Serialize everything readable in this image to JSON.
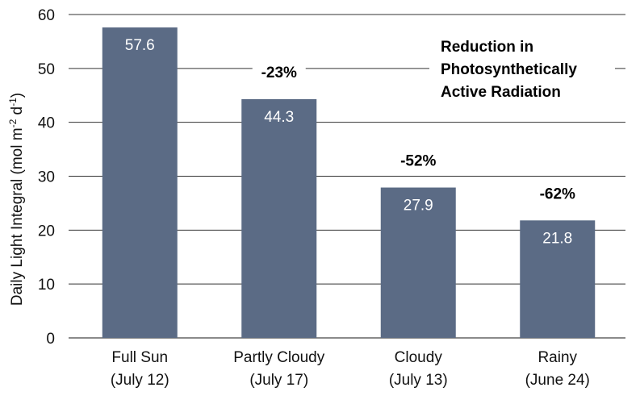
{
  "chart_data": {
    "type": "bar",
    "categories": [
      [
        "Full Sun",
        "(July 12)"
      ],
      [
        "Partly Cloudy",
        "(July 17)"
      ],
      [
        "Cloudy",
        "(July 13)"
      ],
      [
        "Rainy",
        "(June 24)"
      ]
    ],
    "values": [
      57.6,
      44.3,
      27.9,
      21.8
    ],
    "value_labels": [
      "57.6",
      "44.3",
      "27.9",
      "21.8"
    ],
    "reductions": [
      "",
      "-23%",
      "-52%",
      "-62%"
    ],
    "ylabel": "Daily Light Integral (mol m",
    "ylabel_sup1": "-2",
    "ylabel_mid": " d",
    "ylabel_sup2": "-1",
    "ylabel_end": ")",
    "annotation": [
      "Reduction in",
      "Photosynthetically",
      "Active Radiation"
    ],
    "ylim": [
      0,
      60
    ],
    "yticks": [
      0,
      10,
      20,
      30,
      40,
      50,
      60
    ],
    "grid": true,
    "bar_color": "#5b6b85"
  }
}
